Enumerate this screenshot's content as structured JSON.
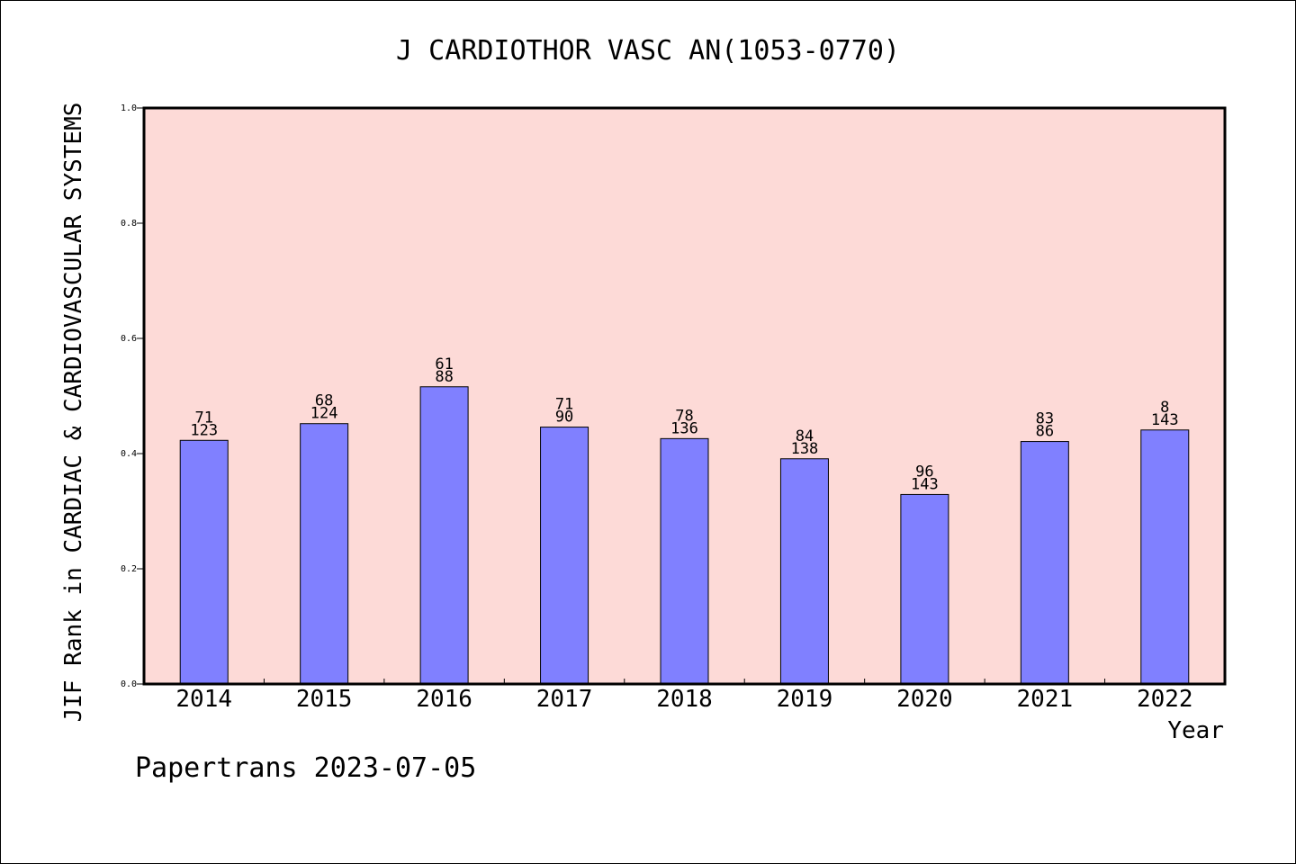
{
  "chart_data": {
    "type": "bar",
    "title": "J CARDIOTHOR VASC AN(1053-0770)",
    "xlabel": "Year",
    "ylabel": "JIF Rank in CARDIAC & CARDIOVASCULAR SYSTEMS",
    "ylim": [
      0,
      1.0
    ],
    "yticks": [
      "0.0",
      "0.2",
      "0.4",
      "0.6",
      "0.8",
      "1.0"
    ],
    "categories": [
      "2014",
      "2015",
      "2016",
      "2017",
      "2018",
      "2019",
      "2020",
      "2021",
      "2022"
    ],
    "values": [
      0.423,
      0.452,
      0.516,
      0.446,
      0.426,
      0.391,
      0.329,
      0.421,
      0.441
    ],
    "rank_labels": [
      "71",
      "68",
      "61",
      "71",
      "78",
      "84",
      "96",
      "83",
      "8"
    ],
    "total_labels": [
      "123",
      "124",
      "88",
      "90",
      "136",
      "138",
      "143",
      "86",
      "143"
    ],
    "grid": false,
    "legend": "none",
    "colors": {
      "plot_background": "#fddad7",
      "bar_fill": "#8080ff",
      "bar_stroke": "#000000"
    }
  },
  "footer": {
    "watermark": "Papertrans 2023-07-05"
  }
}
